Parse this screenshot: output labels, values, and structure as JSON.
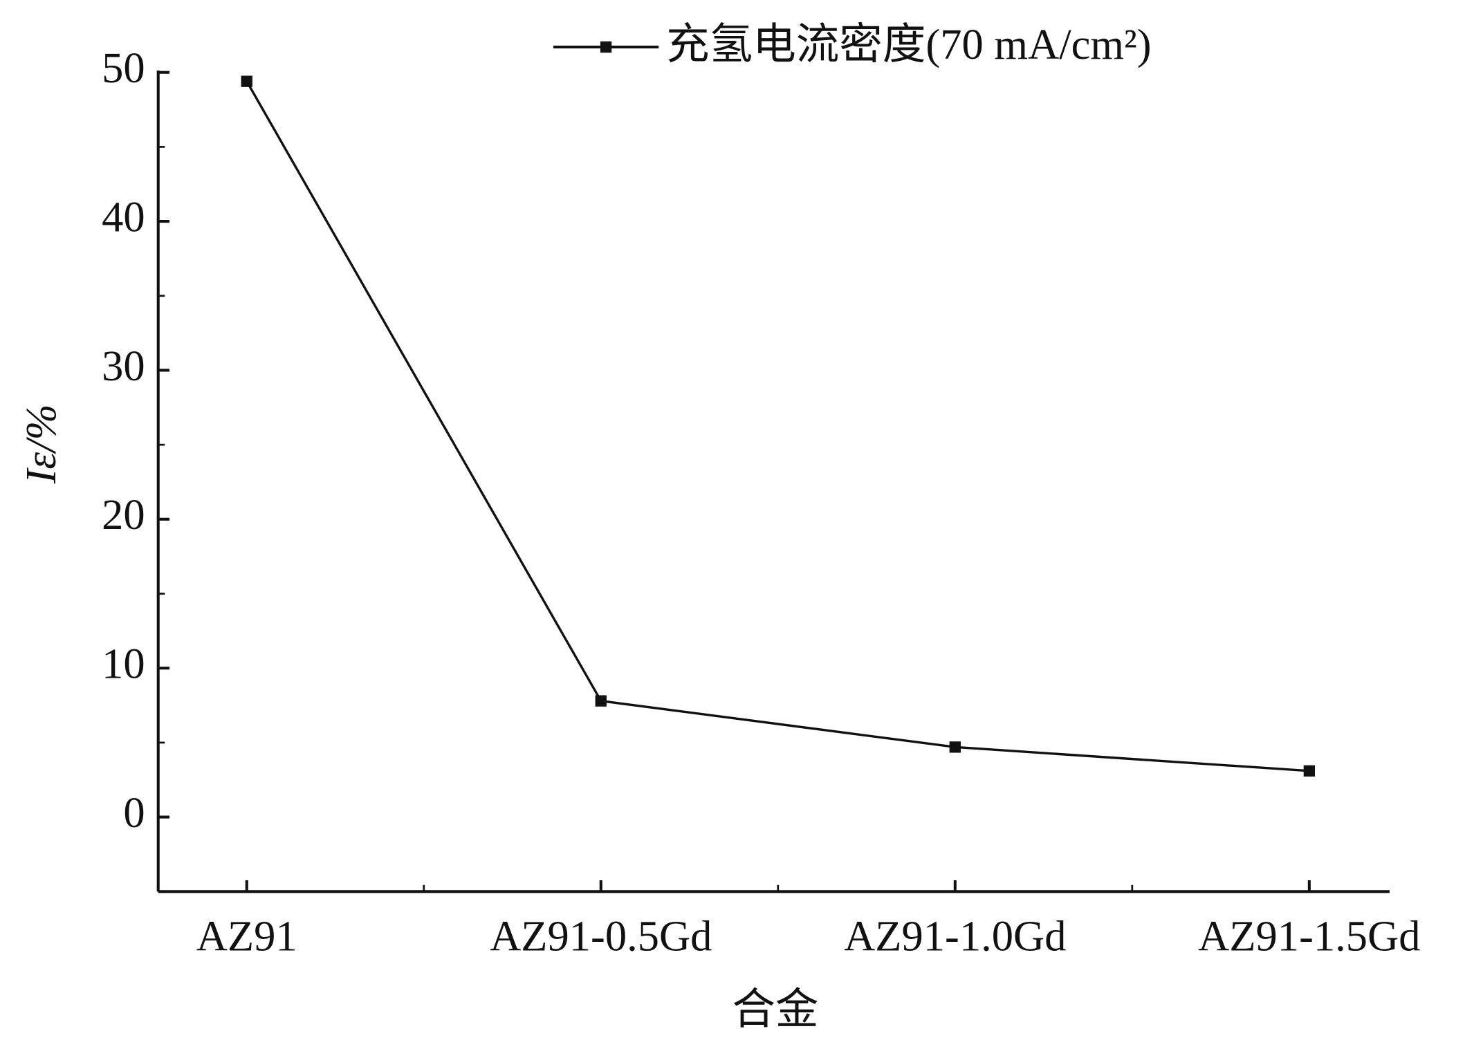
{
  "chart_data": {
    "type": "line",
    "x_label": "合金",
    "y_label": "Iε/%",
    "categories": [
      "AZ91",
      "AZ91-0.5Gd",
      "AZ91-1.0Gd",
      "AZ91-1.5Gd"
    ],
    "series": [
      {
        "name": "充氢电流密度(70 mA/cm²)",
        "color": "#111111",
        "values": [
          49.4,
          7.8,
          4.7,
          3.1
        ]
      }
    ],
    "ylim": [
      -5,
      50
    ],
    "yticks": [
      0,
      10,
      20,
      30,
      40,
      50
    ],
    "legend": "top-right"
  }
}
